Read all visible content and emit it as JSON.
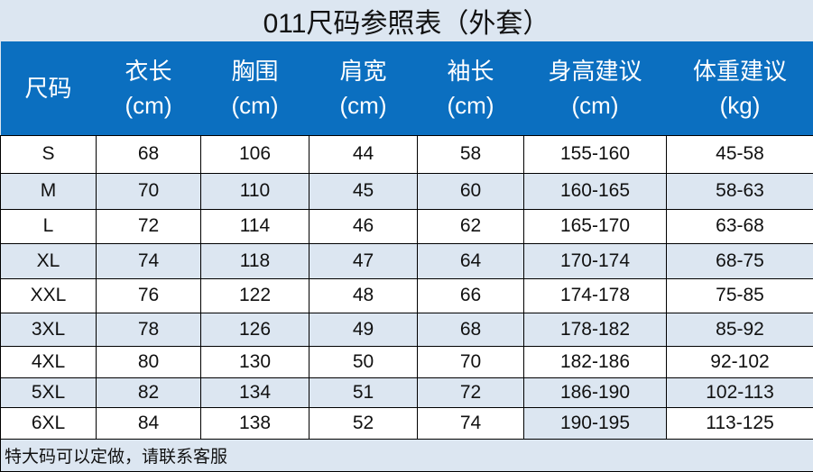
{
  "title": "011尺码参照表（外套）",
  "headers": [
    [
      "尺码",
      ""
    ],
    [
      "衣长",
      "(cm)"
    ],
    [
      "胸围",
      "(cm)"
    ],
    [
      "肩宽",
      "(cm)"
    ],
    [
      "袖长",
      "(cm)"
    ],
    [
      "身高建议",
      "(cm)"
    ],
    [
      "体重建议",
      "(kg)"
    ]
  ],
  "rows": [
    [
      "S",
      "68",
      "106",
      "44",
      "58",
      "155-160",
      "45-58"
    ],
    [
      "M",
      "70",
      "110",
      "45",
      "60",
      "160-165",
      "58-63"
    ],
    [
      "L",
      "72",
      "114",
      "46",
      "62",
      "165-170",
      "63-68"
    ],
    [
      "XL",
      "74",
      "118",
      "47",
      "64",
      "170-174",
      "68-75"
    ],
    [
      "XXL",
      "76",
      "122",
      "48",
      "66",
      "174-178",
      "75-85"
    ],
    [
      "3XL",
      "78",
      "126",
      "49",
      "68",
      "178-182",
      "85-92"
    ],
    [
      "4XL",
      "80",
      "130",
      "50",
      "70",
      "182-186",
      "92-102"
    ],
    [
      "5XL",
      "82",
      "134",
      "51",
      "72",
      "186-190",
      "102-113"
    ],
    [
      "6XL",
      "84",
      "138",
      "52",
      "74",
      "190-195",
      "113-125"
    ]
  ],
  "footer": "特大码可以定做，请联系客服",
  "colors": {
    "header": "#0b6fc0",
    "alt_row": "#dce6f1"
  }
}
